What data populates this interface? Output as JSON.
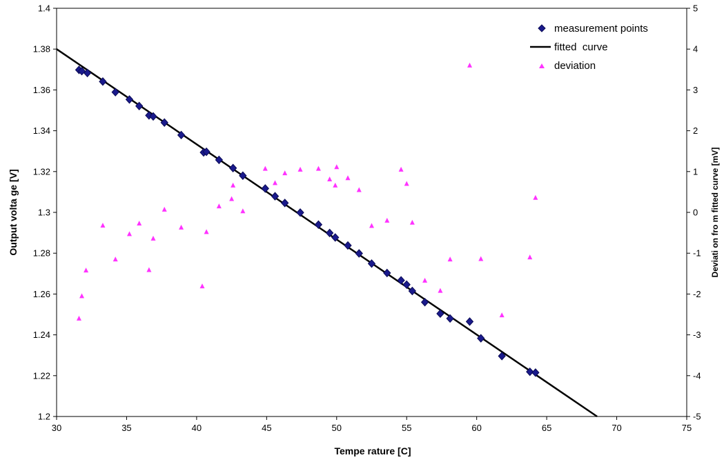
{
  "chart_data": {
    "type": "scatter",
    "xlabel": "Tempe rature  [C]",
    "ylabel": "Output volta ge  [V]",
    "y2label": "Deviati on fro m fitted curve [mV]",
    "xlim": [
      30,
      75
    ],
    "ylim": [
      1.2,
      1.4
    ],
    "y2lim": [
      -5,
      5
    ],
    "x_ticks": [
      "30",
      "35",
      "40",
      "45",
      "50",
      "55",
      "60",
      "65",
      "70",
      "75"
    ],
    "y_ticks": [
      "1.2",
      "1.22",
      "1.24",
      "1.26",
      "1.28",
      "1.3",
      "1.32",
      "1.34",
      "1.36",
      "1.38",
      "1.4"
    ],
    "y2_ticks": [
      "-5",
      "-4",
      "-3",
      "-2",
      "-1",
      "0",
      "1",
      "2",
      "3",
      "4",
      "5"
    ],
    "grid": false,
    "legend": {
      "position": "top-right",
      "entries": [
        "measurement points",
        "fitted  curve",
        "deviation"
      ]
    },
    "series": [
      {
        "name": "measurement points",
        "axis": "left",
        "marker": "diamond",
        "color": "#1a1a8c",
        "points": [
          [
            31.6,
            1.3698
          ],
          [
            31.8,
            1.3692
          ],
          [
            32.2,
            1.3683
          ],
          [
            33.3,
            1.3641
          ],
          [
            34.2,
            1.3589
          ],
          [
            35.2,
            1.3553
          ],
          [
            35.9,
            1.3521
          ],
          [
            36.6,
            1.3475
          ],
          [
            36.9,
            1.347
          ],
          [
            37.7,
            1.344
          ],
          [
            38.9,
            1.3379
          ],
          [
            40.5,
            1.3294
          ],
          [
            40.7,
            1.3297
          ],
          [
            41.6,
            1.3257
          ],
          [
            42.6,
            1.3217
          ],
          [
            43.3,
            1.318
          ],
          [
            44.9,
            1.3117
          ],
          [
            45.6,
            1.3079
          ],
          [
            46.3,
            1.3046
          ],
          [
            47.4,
            1.2999
          ],
          [
            48.7,
            1.294
          ],
          [
            49.5,
            1.2899
          ],
          [
            49.9,
            1.2877
          ],
          [
            50.8,
            1.2838
          ],
          [
            51.6,
            1.2799
          ],
          [
            52.5,
            1.2749
          ],
          [
            53.6,
            1.2703
          ],
          [
            54.6,
            1.2667
          ],
          [
            55.0,
            1.2646
          ],
          [
            55.4,
            1.2615
          ],
          [
            56.3,
            1.256
          ],
          [
            57.4,
            1.2504
          ],
          [
            58.1,
            1.248
          ],
          [
            59.5,
            1.2465
          ],
          [
            60.3,
            1.2383
          ],
          [
            61.8,
            1.2296
          ],
          [
            63.8,
            1.2219
          ],
          [
            64.2,
            1.2215
          ]
        ]
      },
      {
        "name": "fitted  curve",
        "axis": "left",
        "type": "line",
        "color": "#000000",
        "points": [
          [
            30,
            1.38
          ],
          [
            68.6,
            1.2
          ]
        ]
      },
      {
        "name": "deviation",
        "axis": "right",
        "marker": "triangle",
        "color": "#ff33ff",
        "points": [
          [
            31.6,
            -2.6
          ],
          [
            31.8,
            -2.05
          ],
          [
            32.1,
            -1.42
          ],
          [
            33.3,
            -0.32
          ],
          [
            34.2,
            -1.15
          ],
          [
            35.2,
            -0.53
          ],
          [
            35.9,
            -0.27
          ],
          [
            36.6,
            -1.41
          ],
          [
            36.9,
            -0.64
          ],
          [
            37.7,
            0.07
          ],
          [
            38.9,
            -0.37
          ],
          [
            40.4,
            -1.81
          ],
          [
            40.7,
            -0.48
          ],
          [
            41.6,
            0.15
          ],
          [
            42.5,
            0.33
          ],
          [
            42.6,
            0.66
          ],
          [
            43.3,
            0.03
          ],
          [
            44.9,
            1.07
          ],
          [
            45.6,
            0.72
          ],
          [
            46.3,
            0.96
          ],
          [
            47.4,
            1.05
          ],
          [
            48.7,
            1.07
          ],
          [
            49.5,
            0.81
          ],
          [
            49.9,
            0.66
          ],
          [
            50.0,
            1.11
          ],
          [
            50.8,
            0.84
          ],
          [
            51.6,
            0.55
          ],
          [
            52.5,
            -0.33
          ],
          [
            53.6,
            -0.2
          ],
          [
            54.6,
            1.05
          ],
          [
            55.0,
            0.7
          ],
          [
            55.4,
            -0.25
          ],
          [
            56.3,
            -1.67
          ],
          [
            57.4,
            -1.92
          ],
          [
            58.1,
            -1.15
          ],
          [
            59.5,
            3.6
          ],
          [
            60.3,
            -1.14
          ],
          [
            61.8,
            -2.52
          ],
          [
            63.8,
            -1.1
          ],
          [
            64.2,
            0.36
          ]
        ]
      }
    ]
  }
}
